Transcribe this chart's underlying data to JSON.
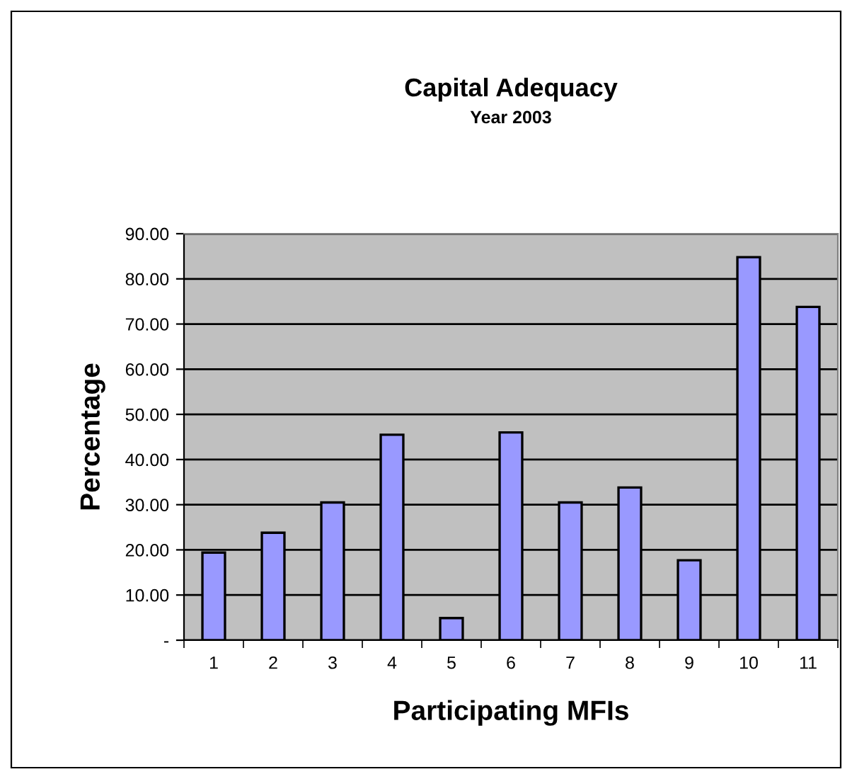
{
  "chart_data": {
    "type": "bar",
    "title": "Capital Adequacy",
    "subtitle": "Year 2003",
    "xlabel": "Participating MFIs",
    "ylabel": "Percentage",
    "categories": [
      "1",
      "2",
      "3",
      "4",
      "5",
      "6",
      "7",
      "8",
      "9",
      "10",
      "11"
    ],
    "values": [
      19.4,
      23.8,
      30.5,
      45.5,
      4.9,
      46.0,
      30.5,
      33.8,
      17.7,
      84.8,
      73.8
    ],
    "color": "#9999ff",
    "ylim": [
      0,
      90
    ],
    "yticks": [
      {
        "value": 0,
        "label": "-"
      },
      {
        "value": 10,
        "label": "10.00"
      },
      {
        "value": 20,
        "label": "20.00"
      },
      {
        "value": 30,
        "label": "30.00"
      },
      {
        "value": 40,
        "label": "40.00"
      },
      {
        "value": 50,
        "label": "50.00"
      },
      {
        "value": 60,
        "label": "60.00"
      },
      {
        "value": 70,
        "label": "70.00"
      },
      {
        "value": 80,
        "label": "80.00"
      },
      {
        "value": 90,
        "label": "90.00"
      }
    ],
    "grid": "y"
  }
}
